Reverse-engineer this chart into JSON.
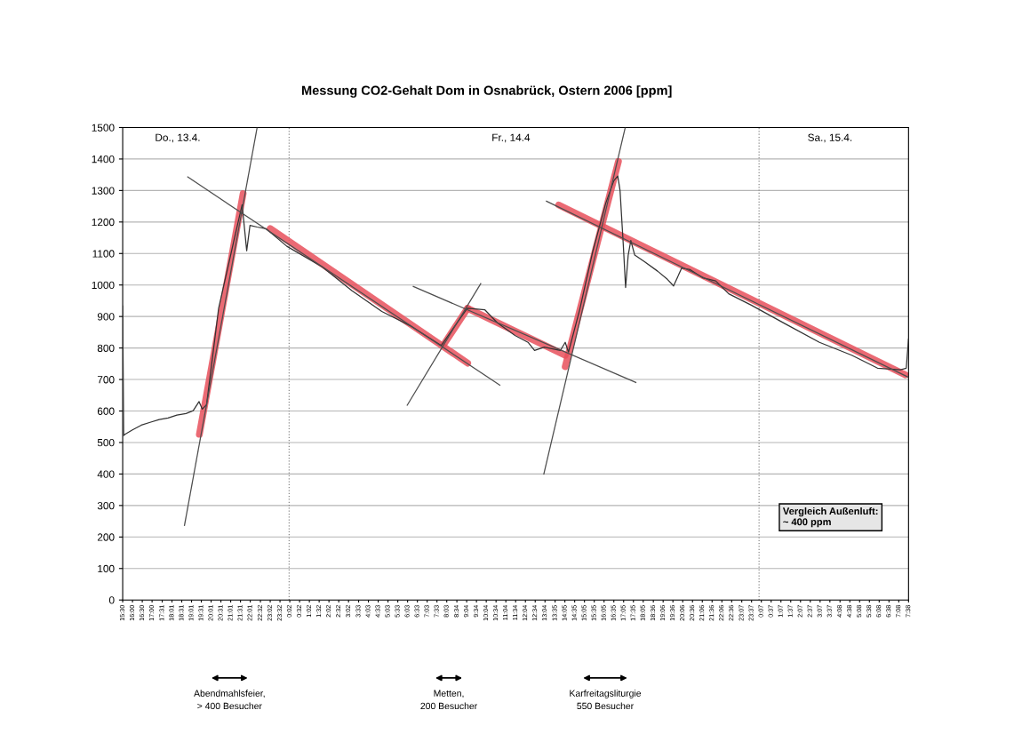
{
  "chart_data": {
    "type": "line",
    "title": "Messung CO2-Gehalt Dom in Osnabrück, Ostern 2006 [ppm]",
    "x": [
      "2006-04-13T15:30",
      "2006-04-13T15:33",
      "2006-04-13T15:37",
      "2006-04-13T16:00",
      "2006-04-13T16:27",
      "2006-04-13T16:54",
      "2006-04-13T17:22",
      "2006-04-13T17:49",
      "2006-04-13T18:16",
      "2006-04-13T18:44",
      "2006-04-13T19:06",
      "2006-04-13T19:24",
      "2006-04-13T19:34",
      "2006-04-13T19:47",
      "2006-04-13T20:24",
      "2006-04-13T21:09",
      "2006-04-13T21:36",
      "2006-04-13T21:50",
      "2006-04-13T22:00",
      "2006-04-13T22:22",
      "2006-04-13T22:49",
      "2006-04-13T23:53",
      "2006-04-14T01:42",
      "2006-04-14T03:12",
      "2006-04-14T04:44",
      "2006-04-14T06:14",
      "2006-04-14T07:46",
      "2006-04-14T09:06",
      "2006-04-14T10:00",
      "2006-04-14T10:38",
      "2006-04-14T11:32",
      "2006-04-14T12:12",
      "2006-04-14T12:32",
      "2006-04-14T13:02",
      "2006-04-14T13:51",
      "2006-04-14T14:06",
      "2006-04-14T14:16",
      "2006-04-14T14:50",
      "2006-04-14T15:30",
      "2006-04-14T16:10",
      "2006-04-14T16:35",
      "2006-04-14T16:47",
      "2006-04-14T16:54",
      "2006-04-14T17:04",
      "2006-04-14T17:11",
      "2006-04-14T17:19",
      "2006-04-14T17:27",
      "2006-04-14T17:39",
      "2006-04-14T18:09",
      "2006-04-14T18:49",
      "2006-04-14T19:19",
      "2006-04-14T19:38",
      "2006-04-14T20:03",
      "2006-04-14T20:28",
      "2006-04-14T21:07",
      "2006-04-14T21:47",
      "2006-04-14T22:27",
      "2006-04-14T23:36",
      "2006-04-15T01:25",
      "2006-04-15T03:05",
      "2006-04-15T04:44",
      "2006-04-15T06:03",
      "2006-04-15T07:13",
      "2006-04-15T07:31",
      "2006-04-15T07:38"
    ],
    "series": [
      {
        "color": "#333333",
        "values": [
          935,
          522,
          526,
          540,
          555,
          564,
          573,
          578,
          587,
          592,
          601,
          630,
          606,
          620,
          926,
          1133,
          1255,
          1109,
          1189,
          1184,
          1179,
          1123,
          1057,
          982,
          916,
          869,
          808,
          926,
          921,
          880,
          840,
          818,
          792,
          803,
          792,
          818,
          787,
          920,
          1105,
          1259,
          1331,
          1346,
          1300,
          1126,
          992,
          1095,
          1141,
          1095,
          1074,
          1044,
          1018,
          997,
          1054,
          1049,
          1023,
          1013,
          972,
          936,
          874,
          818,
          777,
          736,
          731,
          736,
          830
        ]
      },
      {
        "color": "#4d4d4d",
        "x": [
          "2006-04-13T18:48",
          "2006-04-14T10:47"
        ],
        "values": [
          1344,
          681
        ]
      },
      {
        "color": "#4d4d4d",
        "x": [
          "2006-04-13T18:39",
          "2006-04-13T22:22"
        ],
        "values": [
          235,
          1500
        ]
      },
      {
        "color": "#4d4d4d",
        "x": [
          "2006-04-14T06:01",
          "2006-04-14T09:48"
        ],
        "values": [
          617,
          1006
        ]
      },
      {
        "color": "#4d4d4d",
        "x": [
          "2006-04-14T06:19",
          "2006-04-14T17:44"
        ],
        "values": [
          996,
          690
        ]
      },
      {
        "color": "#4d4d4d",
        "x": [
          "2006-04-14T13:00",
          "2006-04-14T17:10"
        ],
        "values": [
          398,
          1500
        ]
      },
      {
        "color": "#4d4d4d",
        "x": [
          "2006-04-14T13:07",
          "2006-04-15T07:38"
        ],
        "values": [
          1267,
          707
        ]
      },
      {
        "color": "#e8505c",
        "x": [
          "2006-04-13T19:25",
          "2006-04-13T21:39"
        ],
        "values": [
          526,
          1290
        ]
      },
      {
        "color": "#e8505c",
        "x": [
          "2006-04-13T23:02",
          "2006-04-14T09:07"
        ],
        "values": [
          1179,
          752
        ]
      },
      {
        "color": "#e8505c",
        "x": [
          "2006-04-14T07:55",
          "2006-04-14T09:07"
        ],
        "values": [
          813,
          926
        ]
      },
      {
        "color": "#e8505c",
        "x": [
          "2006-04-14T09:07",
          "2006-04-14T14:06"
        ],
        "values": [
          926,
          777
        ]
      },
      {
        "color": "#e8505c",
        "x": [
          "2006-04-14T14:06",
          "2006-04-14T16:49"
        ],
        "values": [
          741,
          1392
        ]
      },
      {
        "color": "#e8505c",
        "x": [
          "2006-04-14T13:46",
          "2006-04-15T07:28"
        ],
        "values": [
          1254,
          715
        ]
      }
    ],
    "xlim": [
      "2006-04-13T15:30",
      "2006-04-15T07:38"
    ],
    "xticks": [
      {
        "value": "2006-04-13T15:30",
        "label": "15:30"
      },
      {
        "value": "2006-04-13T16:00",
        "label": "16:00"
      },
      {
        "value": "2006-04-13T16:30",
        "label": "16:30"
      },
      {
        "value": "2006-04-13T17:00",
        "label": "17:00"
      },
      {
        "value": "2006-04-13T17:31",
        "label": "17:31"
      },
      {
        "value": "2006-04-13T18:01",
        "label": "18:01"
      },
      {
        "value": "2006-04-13T18:31",
        "label": "18:31"
      },
      {
        "value": "2006-04-13T19:01",
        "label": "19:01"
      },
      {
        "value": "2006-04-13T19:31",
        "label": "19:31"
      },
      {
        "value": "2006-04-13T20:01",
        "label": "20:01"
      },
      {
        "value": "2006-04-13T20:31",
        "label": "20:31"
      },
      {
        "value": "2006-04-13T21:01",
        "label": "21:01"
      },
      {
        "value": "2006-04-13T21:31",
        "label": "21:31"
      },
      {
        "value": "2006-04-13T22:01",
        "label": "22:01"
      },
      {
        "value": "2006-04-13T22:32",
        "label": "22:32"
      },
      {
        "value": "2006-04-13T23:02",
        "label": "23:02"
      },
      {
        "value": "2006-04-13T23:32",
        "label": "23:32"
      },
      {
        "value": "2006-04-14T00:02",
        "label": "0:02"
      },
      {
        "value": "2006-04-14T00:32",
        "label": "0:32"
      },
      {
        "value": "2006-04-14T01:02",
        "label": "1:02"
      },
      {
        "value": "2006-04-14T01:32",
        "label": "1:32"
      },
      {
        "value": "2006-04-14T02:02",
        "label": "2:02"
      },
      {
        "value": "2006-04-14T02:32",
        "label": "2:32"
      },
      {
        "value": "2006-04-14T03:02",
        "label": "3:02"
      },
      {
        "value": "2006-04-14T03:33",
        "label": "3:33"
      },
      {
        "value": "2006-04-14T04:03",
        "label": "4:03"
      },
      {
        "value": "2006-04-14T04:33",
        "label": "4:33"
      },
      {
        "value": "2006-04-14T05:03",
        "label": "5:03"
      },
      {
        "value": "2006-04-14T05:33",
        "label": "5:33"
      },
      {
        "value": "2006-04-14T06:03",
        "label": "6:03"
      },
      {
        "value": "2006-04-14T06:33",
        "label": "6:33"
      },
      {
        "value": "2006-04-14T07:03",
        "label": "7:03"
      },
      {
        "value": "2006-04-14T07:33",
        "label": "7:33"
      },
      {
        "value": "2006-04-14T08:03",
        "label": "8:03"
      },
      {
        "value": "2006-04-14T08:34",
        "label": "8:34"
      },
      {
        "value": "2006-04-14T09:04",
        "label": "9:04"
      },
      {
        "value": "2006-04-14T09:34",
        "label": "9:34"
      },
      {
        "value": "2006-04-14T10:04",
        "label": "10:04"
      },
      {
        "value": "2006-04-14T10:34",
        "label": "10:34"
      },
      {
        "value": "2006-04-14T11:04",
        "label": "11:04"
      },
      {
        "value": "2006-04-14T11:34",
        "label": "11:34"
      },
      {
        "value": "2006-04-14T12:04",
        "label": "12:04"
      },
      {
        "value": "2006-04-14T12:34",
        "label": "12:34"
      },
      {
        "value": "2006-04-14T13:04",
        "label": "13:04"
      },
      {
        "value": "2006-04-14T13:35",
        "label": "13:35"
      },
      {
        "value": "2006-04-14T14:05",
        "label": "14:05"
      },
      {
        "value": "2006-04-14T14:35",
        "label": "14:35"
      },
      {
        "value": "2006-04-14T15:05",
        "label": "15:05"
      },
      {
        "value": "2006-04-14T15:35",
        "label": "15:35"
      },
      {
        "value": "2006-04-14T16:05",
        "label": "16:05"
      },
      {
        "value": "2006-04-14T16:35",
        "label": "16:35"
      },
      {
        "value": "2006-04-14T17:05",
        "label": "17:05"
      },
      {
        "value": "2006-04-14T17:35",
        "label": "17:35"
      },
      {
        "value": "2006-04-14T18:05",
        "label": "18:05"
      },
      {
        "value": "2006-04-14T18:36",
        "label": "18:36"
      },
      {
        "value": "2006-04-14T19:06",
        "label": "19:06"
      },
      {
        "value": "2006-04-14T19:36",
        "label": "19:36"
      },
      {
        "value": "2006-04-14T20:06",
        "label": "20:06"
      },
      {
        "value": "2006-04-14T20:36",
        "label": "20:36"
      },
      {
        "value": "2006-04-14T21:06",
        "label": "21:06"
      },
      {
        "value": "2006-04-14T21:36",
        "label": "21:36"
      },
      {
        "value": "2006-04-14T22:06",
        "label": "22:06"
      },
      {
        "value": "2006-04-14T22:36",
        "label": "22:36"
      },
      {
        "value": "2006-04-14T23:07",
        "label": "23:07"
      },
      {
        "value": "2006-04-14T23:37",
        "label": "23:37"
      },
      {
        "value": "2006-04-15T00:07",
        "label": "0:07"
      },
      {
        "value": "2006-04-15T00:37",
        "label": "0:37"
      },
      {
        "value": "2006-04-15T01:07",
        "label": "1:07"
      },
      {
        "value": "2006-04-15T01:37",
        "label": "1:37"
      },
      {
        "value": "2006-04-15T02:07",
        "label": "2:07"
      },
      {
        "value": "2006-04-15T02:37",
        "label": "2:37"
      },
      {
        "value": "2006-04-15T03:07",
        "label": "3:07"
      },
      {
        "value": "2006-04-15T03:37",
        "label": "3:37"
      },
      {
        "value": "2006-04-15T04:08",
        "label": "4:08"
      },
      {
        "value": "2006-04-15T04:38",
        "label": "4:38"
      },
      {
        "value": "2006-04-15T05:08",
        "label": "5:08"
      },
      {
        "value": "2006-04-15T05:38",
        "label": "5:38"
      },
      {
        "value": "2006-04-15T06:08",
        "label": "6:08"
      },
      {
        "value": "2006-04-15T06:38",
        "label": "6:38"
      },
      {
        "value": "2006-04-15T07:08",
        "label": "7:08"
      },
      {
        "value": "2006-04-15T07:38",
        "label": "7:38"
      }
    ],
    "ylim": [
      0,
      1500
    ],
    "yticks": [
      0,
      100,
      200,
      300,
      400,
      500,
      600,
      700,
      800,
      900,
      1000,
      1100,
      1200,
      1300,
      1400,
      1500
    ],
    "grid": "y",
    "marker": "none",
    "line_style": "solid",
    "ref_lines": [
      {
        "axis": "x",
        "value": "2006-04-14T00:00",
        "color": "#8c8c8c",
        "line_style": "dotted"
      },
      {
        "axis": "x",
        "value": "2006-04-15T00:00",
        "color": "#8c8c8c",
        "line_style": "dotted"
      }
    ],
    "annotations": [
      "Do., 13.4.",
      "Fr., 14.4",
      "Sa., 15.4.",
      "Abendmahlsfeier,\n> 400 Besucher",
      "Metten,\n200 Besucher",
      "Karfreitagsliturgie\n550 Besucher",
      "Vergleich Außenluft:\n~ 400 ppm"
    ]
  }
}
